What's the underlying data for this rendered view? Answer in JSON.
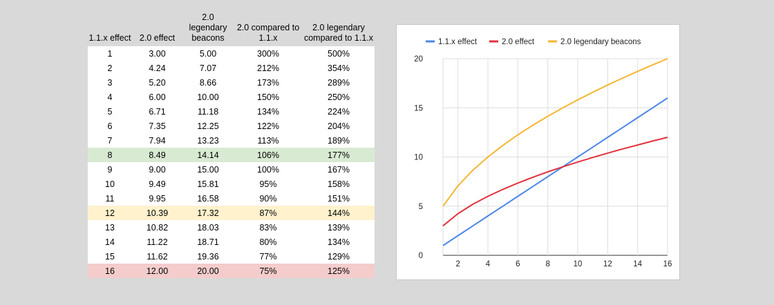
{
  "table": {
    "headers": [
      "1.1.x effect",
      "2.0 effect",
      "2.0 legendary beacons",
      "2.0 compared to 1.1.x",
      "2.0 legendary compared to 1.1.x"
    ],
    "rows": [
      [
        "1",
        "3.00",
        "5.00",
        "300%",
        "500%"
      ],
      [
        "2",
        "4.24",
        "7.07",
        "212%",
        "354%"
      ],
      [
        "3",
        "5.20",
        "8.66",
        "173%",
        "289%"
      ],
      [
        "4",
        "6.00",
        "10.00",
        "150%",
        "250%"
      ],
      [
        "5",
        "6.71",
        "11.18",
        "134%",
        "224%"
      ],
      [
        "6",
        "7.35",
        "12.25",
        "122%",
        "204%"
      ],
      [
        "7",
        "7.94",
        "13.23",
        "113%",
        "189%"
      ],
      [
        "8",
        "8.49",
        "14.14",
        "106%",
        "177%"
      ],
      [
        "9",
        "9.00",
        "15.00",
        "100%",
        "167%"
      ],
      [
        "10",
        "9.49",
        "15.81",
        "95%",
        "158%"
      ],
      [
        "11",
        "9.95",
        "16.58",
        "90%",
        "151%"
      ],
      [
        "12",
        "10.39",
        "17.32",
        "87%",
        "144%"
      ],
      [
        "13",
        "10.82",
        "18.03",
        "83%",
        "139%"
      ],
      [
        "14",
        "11.22",
        "18.71",
        "80%",
        "134%"
      ],
      [
        "15",
        "11.62",
        "19.36",
        "77%",
        "129%"
      ],
      [
        "16",
        "12.00",
        "20.00",
        "75%",
        "125%"
      ]
    ],
    "highlights": [
      {
        "row": "8",
        "color": "#d9ead3"
      },
      {
        "row": "12",
        "color": "#fff2cc"
      },
      {
        "row": "16",
        "color": "#f4cccc"
      }
    ]
  },
  "chart_data": {
    "type": "line",
    "x": [
      1,
      2,
      3,
      4,
      5,
      6,
      7,
      8,
      9,
      10,
      11,
      12,
      13,
      14,
      15,
      16
    ],
    "series": [
      {
        "name": "1.1.x effect",
        "color": "#4a86e8",
        "values": [
          1,
          2,
          3,
          4,
          5,
          6,
          7,
          8,
          9,
          10,
          11,
          12,
          13,
          14,
          15,
          16
        ]
      },
      {
        "name": "2.0 effect",
        "color": "#e0323c",
        "values": [
          3.0,
          4.24,
          5.2,
          6.0,
          6.71,
          7.35,
          7.94,
          8.49,
          9.0,
          9.49,
          9.95,
          10.39,
          10.82,
          11.22,
          11.62,
          12.0
        ]
      },
      {
        "name": "2.0 legendary beacons",
        "color": "#f5b533",
        "values": [
          5.0,
          7.07,
          8.66,
          10.0,
          11.18,
          12.25,
          13.23,
          14.14,
          15.0,
          15.81,
          16.58,
          17.32,
          18.03,
          18.71,
          19.36,
          20.0
        ]
      }
    ],
    "xlim": [
      1,
      16
    ],
    "ylim": [
      0,
      20
    ],
    "x_ticks": [
      "2",
      "4",
      "6",
      "8",
      "10",
      "12",
      "14",
      "16"
    ],
    "y_ticks": [
      "0",
      "5",
      "10",
      "15",
      "20"
    ],
    "legend": "top",
    "grid": true,
    "title": "",
    "xlabel": "",
    "ylabel": ""
  }
}
